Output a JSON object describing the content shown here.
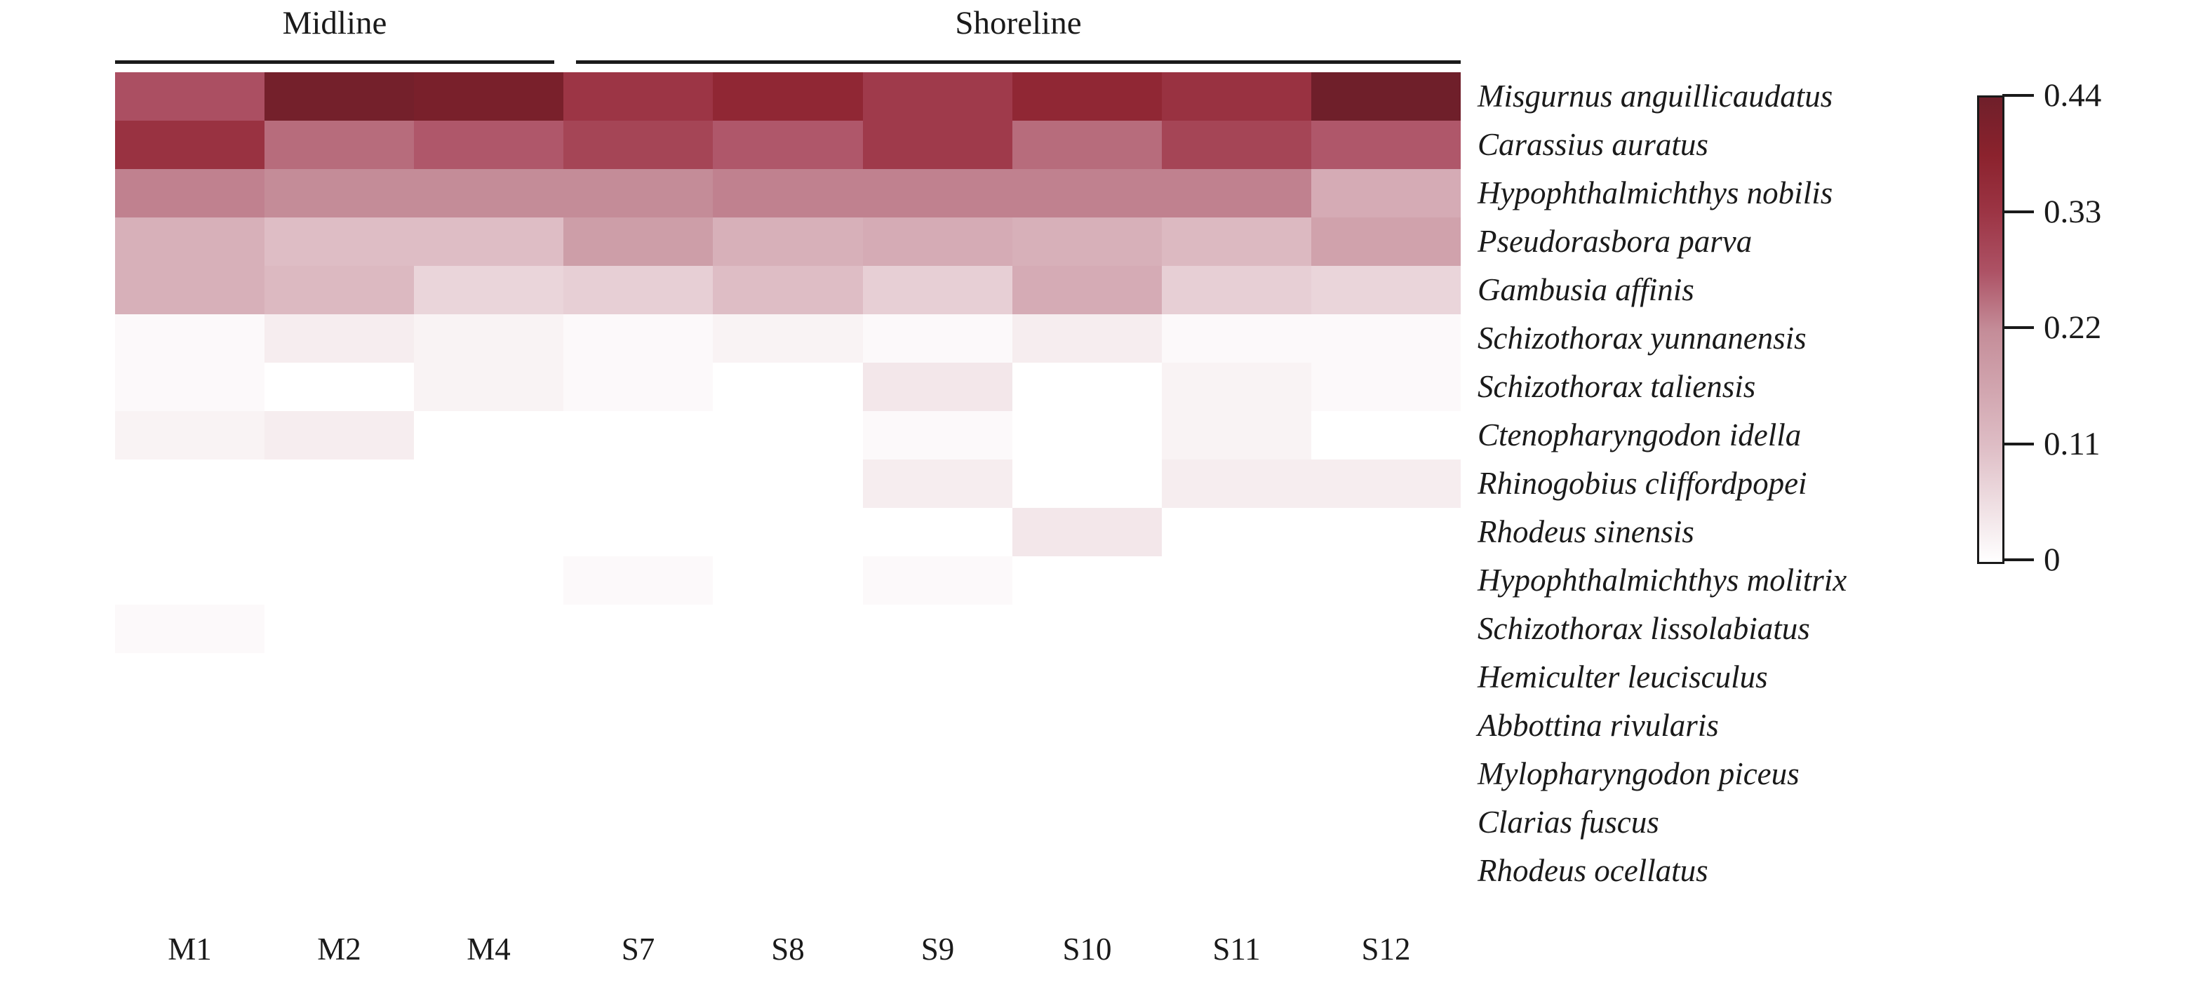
{
  "figure": {
    "background": "#ffffff",
    "text_color": "#1a1a1a",
    "groups": [
      {
        "label": "Midline",
        "columns": [
          "M1",
          "M2",
          "M4"
        ]
      },
      {
        "label": "Shoreline",
        "columns": [
          "S7",
          "S8",
          "S9",
          "S10",
          "S11",
          "S12"
        ]
      }
    ]
  },
  "chart_data": {
    "type": "heatmap",
    "title": "",
    "xlabel": "",
    "ylabel": "",
    "grid": false,
    "columns": [
      "M1",
      "M2",
      "M4",
      "S7",
      "S8",
      "S9",
      "S10",
      "S11",
      "S12"
    ],
    "rows": [
      "Misgurnus anguillicaudatus",
      "Carassius auratus",
      "Hypophthalmichthys nobilis",
      "Pseudorasbora parva",
      "Gambusia affinis",
      "Schizothorax yunnanensis",
      "Schizothorax taliensis",
      "Ctenopharyngodon idella",
      "Rhinogobius cliffordpopei",
      "Rhodeus sinensis",
      "Hypophthalmichthys molitrix",
      "Schizothorax lissolabiatus",
      "Hemiculter leucisculus",
      "Abbottina rivularis",
      "Mylopharyngodon piceus",
      "Clarias fuscus",
      "Rhodeus ocellatus"
    ],
    "values": [
      [
        0.28,
        0.43,
        0.42,
        0.33,
        0.37,
        0.32,
        0.37,
        0.34,
        0.44
      ],
      [
        0.34,
        0.25,
        0.27,
        0.3,
        0.27,
        0.32,
        0.25,
        0.3,
        0.27
      ],
      [
        0.23,
        0.22,
        0.22,
        0.22,
        0.23,
        0.23,
        0.23,
        0.23,
        0.15
      ],
      [
        0.14,
        0.11,
        0.11,
        0.18,
        0.14,
        0.15,
        0.14,
        0.12,
        0.17
      ],
      [
        0.14,
        0.12,
        0.07,
        0.08,
        0.11,
        0.08,
        0.15,
        0.08,
        0.07
      ],
      [
        0.01,
        0.03,
        0.02,
        0.01,
        0.02,
        0.01,
        0.03,
        0.01,
        0.01
      ],
      [
        0.01,
        0.0,
        0.02,
        0.01,
        0.0,
        0.04,
        0.0,
        0.02,
        0.01
      ],
      [
        0.02,
        0.03,
        0.0,
        0.0,
        0.0,
        0.01,
        0.0,
        0.02,
        0.0
      ],
      [
        0.0,
        0.0,
        0.0,
        0.0,
        0.0,
        0.03,
        0.0,
        0.03,
        0.03
      ],
      [
        0.0,
        0.0,
        0.0,
        0.0,
        0.0,
        0.0,
        0.04,
        0.0,
        0.0
      ],
      [
        0.0,
        0.0,
        0.0,
        0.01,
        0.0,
        0.01,
        0.0,
        0.0,
        0.0
      ],
      [
        0.01,
        0.0,
        0.0,
        0.0,
        0.0,
        0.0,
        0.0,
        0.0,
        0.0
      ],
      [
        0.0,
        0.0,
        0.0,
        0.0,
        0.0,
        0.0,
        0.0,
        0.0,
        0.0
      ],
      [
        0.0,
        0.0,
        0.0,
        0.0,
        0.0,
        0.0,
        0.0,
        0.0,
        0.0
      ],
      [
        0.0,
        0.0,
        0.0,
        0.0,
        0.0,
        0.0,
        0.0,
        0.0,
        0.0
      ],
      [
        0.0,
        0.0,
        0.0,
        0.0,
        0.0,
        0.0,
        0.0,
        0.0,
        0.0
      ],
      [
        0.0,
        0.0,
        0.0,
        0.0,
        0.0,
        0.0,
        0.0,
        0.0,
        0.0
      ]
    ],
    "value_min": 0,
    "value_max": 0.44,
    "row_label_style": "italic",
    "colorbar": {
      "position": "right",
      "tick_values": [
        0.44,
        0.33,
        0.22,
        0.11,
        0
      ],
      "tick_labels": [
        "0.44",
        "0.33",
        "0.22",
        "0.11",
        "0"
      ],
      "gradient_stops": [
        {
          "t": 0.0,
          "color": "#ffffff"
        },
        {
          "t": 0.25,
          "color": "#debdc5"
        },
        {
          "t": 0.5,
          "color": "#c48c98"
        },
        {
          "t": 0.625,
          "color": "#ad5265"
        },
        {
          "t": 0.75,
          "color": "#9c3545"
        },
        {
          "t": 0.875,
          "color": "#8b222d"
        },
        {
          "t": 1.0,
          "color": "#6f1f2a"
        }
      ]
    }
  }
}
